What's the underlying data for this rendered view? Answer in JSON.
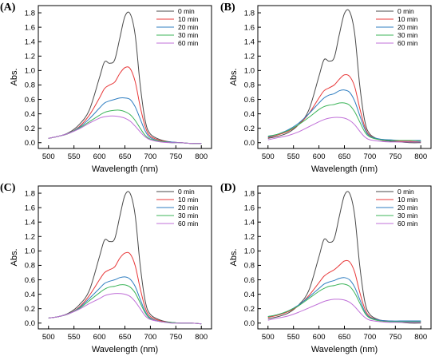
{
  "chart_data": [
    {
      "type": "line",
      "panel_label": "(A)",
      "xlabel": "Wavelength (nm)",
      "ylabel": "Abs.",
      "xlim": [
        480,
        820
      ],
      "ylim": [
        -0.08,
        1.9
      ],
      "xticks": [
        500,
        550,
        600,
        650,
        700,
        750,
        800
      ],
      "yticks": [
        0.0,
        0.2,
        0.4,
        0.6,
        0.8,
        1.0,
        1.2,
        1.4,
        1.6,
        1.8
      ],
      "legend_position": "top-right",
      "series": [
        {
          "name": "0 min",
          "color": "#4a4a4a",
          "x": [
            500,
            520,
            540,
            560,
            580,
            600,
            610,
            620,
            630,
            640,
            650,
            660,
            670,
            680,
            690,
            700,
            720,
            740,
            760,
            780,
            800
          ],
          "y": [
            0.06,
            0.09,
            0.14,
            0.25,
            0.45,
            0.9,
            1.12,
            1.1,
            1.15,
            1.45,
            1.75,
            1.79,
            1.5,
            0.8,
            0.3,
            0.12,
            0.04,
            0.01,
            0.0,
            -0.01,
            -0.01
          ]
        },
        {
          "name": "10 min",
          "color": "#e8393a",
          "x": [
            500,
            520,
            540,
            560,
            580,
            600,
            610,
            620,
            630,
            640,
            650,
            660,
            670,
            680,
            690,
            700,
            720,
            740,
            760,
            780,
            800
          ],
          "y": [
            0.06,
            0.09,
            0.13,
            0.22,
            0.38,
            0.62,
            0.75,
            0.8,
            0.84,
            0.96,
            1.04,
            1.03,
            0.85,
            0.5,
            0.22,
            0.09,
            0.03,
            0.01,
            0.0,
            -0.01,
            -0.01
          ]
        },
        {
          "name": "20 min",
          "color": "#2f7ec1",
          "x": [
            500,
            520,
            540,
            560,
            580,
            600,
            610,
            620,
            630,
            640,
            650,
            660,
            670,
            680,
            690,
            700,
            720,
            740,
            760,
            780,
            800
          ],
          "y": [
            0.06,
            0.09,
            0.13,
            0.21,
            0.33,
            0.48,
            0.55,
            0.58,
            0.6,
            0.62,
            0.62,
            0.6,
            0.5,
            0.33,
            0.16,
            0.07,
            0.02,
            0.01,
            0.0,
            -0.01,
            -0.01
          ]
        },
        {
          "name": "30 min",
          "color": "#3db55a",
          "x": [
            500,
            520,
            540,
            560,
            580,
            600,
            610,
            620,
            630,
            640,
            650,
            660,
            670,
            680,
            690,
            700,
            720,
            740,
            760,
            780,
            800
          ],
          "y": [
            0.06,
            0.09,
            0.13,
            0.2,
            0.29,
            0.38,
            0.42,
            0.44,
            0.45,
            0.45,
            0.43,
            0.39,
            0.31,
            0.2,
            0.1,
            0.05,
            0.02,
            0.0,
            0.0,
            -0.01,
            -0.01
          ]
        },
        {
          "name": "60 min",
          "color": "#c070d8",
          "x": [
            500,
            520,
            540,
            560,
            580,
            600,
            610,
            620,
            630,
            640,
            650,
            660,
            670,
            680,
            690,
            700,
            720,
            740,
            760,
            780,
            800
          ],
          "y": [
            0.06,
            0.09,
            0.13,
            0.19,
            0.27,
            0.34,
            0.36,
            0.37,
            0.37,
            0.36,
            0.34,
            0.3,
            0.23,
            0.15,
            0.08,
            0.04,
            0.01,
            0.0,
            0.0,
            -0.01,
            -0.01
          ]
        }
      ]
    },
    {
      "type": "line",
      "panel_label": "(B)",
      "xlabel": "Wavelength (nm)",
      "ylabel": "Abs.",
      "xlim": [
        480,
        820
      ],
      "ylim": [
        -0.08,
        1.9
      ],
      "xticks": [
        500,
        550,
        600,
        650,
        700,
        750,
        800
      ],
      "yticks": [
        0.0,
        0.2,
        0.4,
        0.6,
        0.8,
        1.0,
        1.2,
        1.4,
        1.6,
        1.8
      ],
      "legend_position": "top-right",
      "series": [
        {
          "name": "0 min",
          "color": "#4a4a4a",
          "x": [
            500,
            520,
            540,
            560,
            580,
            600,
            610,
            620,
            630,
            640,
            650,
            660,
            670,
            680,
            690,
            700,
            720,
            740,
            760,
            780,
            800
          ],
          "y": [
            0.06,
            0.09,
            0.14,
            0.25,
            0.45,
            0.92,
            1.15,
            1.13,
            1.18,
            1.5,
            1.79,
            1.82,
            1.52,
            0.8,
            0.3,
            0.12,
            0.04,
            0.02,
            0.01,
            0.0,
            0.0
          ]
        },
        {
          "name": "10 min",
          "color": "#e8393a",
          "x": [
            500,
            520,
            540,
            560,
            580,
            600,
            610,
            620,
            630,
            640,
            650,
            660,
            670,
            680,
            690,
            700,
            720,
            740,
            760,
            780,
            800
          ],
          "y": [
            0.07,
            0.11,
            0.16,
            0.25,
            0.4,
            0.62,
            0.72,
            0.76,
            0.8,
            0.88,
            0.94,
            0.92,
            0.78,
            0.48,
            0.22,
            0.1,
            0.04,
            0.03,
            0.02,
            0.02,
            0.01
          ]
        },
        {
          "name": "20 min",
          "color": "#2f7ec1",
          "x": [
            500,
            520,
            540,
            560,
            580,
            600,
            610,
            620,
            630,
            640,
            650,
            660,
            670,
            680,
            690,
            700,
            720,
            740,
            760,
            780,
            800
          ],
          "y": [
            0.08,
            0.12,
            0.18,
            0.27,
            0.4,
            0.55,
            0.62,
            0.66,
            0.68,
            0.72,
            0.73,
            0.7,
            0.58,
            0.38,
            0.19,
            0.09,
            0.05,
            0.04,
            0.03,
            0.03,
            0.03
          ]
        },
        {
          "name": "30 min",
          "color": "#3db55a",
          "x": [
            500,
            520,
            540,
            560,
            580,
            600,
            610,
            620,
            630,
            640,
            650,
            660,
            670,
            680,
            690,
            700,
            720,
            740,
            760,
            780,
            800
          ],
          "y": [
            0.09,
            0.12,
            0.17,
            0.25,
            0.35,
            0.46,
            0.5,
            0.52,
            0.53,
            0.55,
            0.55,
            0.52,
            0.43,
            0.29,
            0.15,
            0.08,
            0.04,
            0.03,
            0.03,
            0.03,
            0.02
          ]
        },
        {
          "name": "60 min",
          "color": "#c070d8",
          "x": [
            500,
            520,
            540,
            560,
            580,
            600,
            610,
            620,
            630,
            640,
            650,
            660,
            670,
            680,
            690,
            700,
            720,
            740,
            760,
            780,
            800
          ],
          "y": [
            0.04,
            0.07,
            0.1,
            0.15,
            0.22,
            0.29,
            0.32,
            0.34,
            0.35,
            0.35,
            0.34,
            0.31,
            0.25,
            0.16,
            0.08,
            0.04,
            0.02,
            0.01,
            0.01,
            0.01,
            0.01
          ]
        }
      ]
    },
    {
      "type": "line",
      "panel_label": "(C)",
      "xlabel": "Wavelength (nm)",
      "ylabel": "Abs.",
      "xlim": [
        480,
        820
      ],
      "ylim": [
        -0.08,
        1.9
      ],
      "xticks": [
        500,
        550,
        600,
        650,
        700,
        750,
        800
      ],
      "yticks": [
        0.0,
        0.2,
        0.4,
        0.6,
        0.8,
        1.0,
        1.2,
        1.4,
        1.6,
        1.8
      ],
      "legend_position": "top-right",
      "series": [
        {
          "name": "0 min",
          "color": "#4a4a4a",
          "x": [
            500,
            520,
            540,
            560,
            580,
            600,
            610,
            620,
            630,
            640,
            650,
            660,
            670,
            680,
            690,
            700,
            720,
            740,
            760,
            780,
            800
          ],
          "y": [
            0.07,
            0.09,
            0.14,
            0.25,
            0.45,
            0.92,
            1.15,
            1.13,
            1.17,
            1.48,
            1.77,
            1.8,
            1.5,
            0.8,
            0.3,
            0.12,
            0.04,
            0.01,
            0.0,
            0.0,
            -0.01
          ]
        },
        {
          "name": "10 min",
          "color": "#e8393a",
          "x": [
            500,
            520,
            540,
            560,
            580,
            600,
            610,
            620,
            630,
            640,
            650,
            660,
            670,
            680,
            690,
            700,
            720,
            740,
            760,
            780,
            800
          ],
          "y": [
            0.07,
            0.09,
            0.13,
            0.22,
            0.38,
            0.6,
            0.7,
            0.74,
            0.78,
            0.9,
            0.97,
            0.96,
            0.8,
            0.48,
            0.21,
            0.09,
            0.03,
            0.01,
            0.0,
            0.0,
            -0.01
          ]
        },
        {
          "name": "20 min",
          "color": "#2f7ec1",
          "x": [
            500,
            520,
            540,
            560,
            580,
            600,
            610,
            620,
            630,
            640,
            650,
            660,
            670,
            680,
            690,
            700,
            720,
            740,
            760,
            780,
            800
          ],
          "y": [
            0.07,
            0.09,
            0.13,
            0.21,
            0.34,
            0.48,
            0.55,
            0.58,
            0.6,
            0.63,
            0.64,
            0.61,
            0.51,
            0.33,
            0.16,
            0.07,
            0.02,
            0.01,
            0.0,
            0.0,
            -0.01
          ]
        },
        {
          "name": "30 min",
          "color": "#3db55a",
          "x": [
            500,
            520,
            540,
            560,
            580,
            600,
            610,
            620,
            630,
            640,
            650,
            660,
            670,
            680,
            690,
            700,
            720,
            740,
            760,
            780,
            800
          ],
          "y": [
            0.07,
            0.09,
            0.13,
            0.2,
            0.31,
            0.42,
            0.47,
            0.5,
            0.51,
            0.53,
            0.53,
            0.5,
            0.42,
            0.28,
            0.14,
            0.06,
            0.02,
            0.01,
            0.0,
            0.0,
            -0.01
          ]
        },
        {
          "name": "60 min",
          "color": "#c070d8",
          "x": [
            500,
            520,
            540,
            560,
            580,
            600,
            610,
            620,
            630,
            640,
            650,
            660,
            670,
            680,
            690,
            700,
            720,
            740,
            760,
            780,
            800
          ],
          "y": [
            0.07,
            0.09,
            0.13,
            0.19,
            0.27,
            0.34,
            0.38,
            0.4,
            0.41,
            0.41,
            0.4,
            0.37,
            0.3,
            0.2,
            0.1,
            0.05,
            0.02,
            0.0,
            0.0,
            0.0,
            -0.01
          ]
        }
      ]
    },
    {
      "type": "line",
      "panel_label": "(D)",
      "xlabel": "Wavelength (nm)",
      "ylabel": "Abs.",
      "xlim": [
        480,
        820
      ],
      "ylim": [
        -0.08,
        1.9
      ],
      "xticks": [
        500,
        550,
        600,
        650,
        700,
        750,
        800
      ],
      "yticks": [
        0.0,
        0.2,
        0.4,
        0.6,
        0.8,
        1.0,
        1.2,
        1.4,
        1.6,
        1.8
      ],
      "legend_position": "top-right",
      "series": [
        {
          "name": "0 min",
          "color": "#4a4a4a",
          "x": [
            500,
            520,
            540,
            560,
            580,
            600,
            610,
            620,
            630,
            640,
            650,
            660,
            670,
            680,
            690,
            700,
            720,
            740,
            760,
            780,
            800
          ],
          "y": [
            0.06,
            0.09,
            0.14,
            0.25,
            0.45,
            0.92,
            1.16,
            1.12,
            1.17,
            1.48,
            1.77,
            1.8,
            1.5,
            0.8,
            0.3,
            0.12,
            0.04,
            0.02,
            0.01,
            0.0,
            0.0
          ]
        },
        {
          "name": "10 min",
          "color": "#e8393a",
          "x": [
            500,
            520,
            540,
            560,
            580,
            600,
            610,
            620,
            630,
            640,
            650,
            660,
            670,
            680,
            690,
            700,
            720,
            740,
            760,
            780,
            800
          ],
          "y": [
            0.08,
            0.11,
            0.16,
            0.24,
            0.38,
            0.56,
            0.65,
            0.7,
            0.74,
            0.8,
            0.86,
            0.85,
            0.71,
            0.43,
            0.2,
            0.09,
            0.04,
            0.03,
            0.02,
            0.02,
            0.02
          ]
        },
        {
          "name": "20 min",
          "color": "#2f7ec1",
          "x": [
            500,
            520,
            540,
            560,
            580,
            600,
            610,
            620,
            630,
            640,
            650,
            660,
            670,
            680,
            690,
            700,
            720,
            740,
            760,
            780,
            800
          ],
          "y": [
            0.09,
            0.12,
            0.17,
            0.25,
            0.36,
            0.48,
            0.54,
            0.57,
            0.59,
            0.62,
            0.63,
            0.6,
            0.5,
            0.33,
            0.16,
            0.08,
            0.04,
            0.03,
            0.03,
            0.03,
            0.03
          ]
        },
        {
          "name": "30 min",
          "color": "#3db55a",
          "x": [
            500,
            520,
            540,
            560,
            580,
            600,
            610,
            620,
            630,
            640,
            650,
            660,
            670,
            680,
            690,
            700,
            720,
            740,
            760,
            780,
            800
          ],
          "y": [
            0.09,
            0.12,
            0.17,
            0.24,
            0.34,
            0.44,
            0.48,
            0.51,
            0.52,
            0.54,
            0.54,
            0.51,
            0.42,
            0.28,
            0.14,
            0.07,
            0.03,
            0.02,
            0.02,
            0.02,
            0.02
          ]
        },
        {
          "name": "60 min",
          "color": "#c070d8",
          "x": [
            500,
            520,
            540,
            560,
            580,
            600,
            610,
            620,
            630,
            640,
            650,
            660,
            670,
            680,
            690,
            700,
            720,
            740,
            760,
            780,
            800
          ],
          "y": [
            0.04,
            0.07,
            0.1,
            0.15,
            0.21,
            0.27,
            0.3,
            0.32,
            0.33,
            0.33,
            0.32,
            0.29,
            0.23,
            0.15,
            0.08,
            0.04,
            0.02,
            0.01,
            0.01,
            0.01,
            0.01
          ]
        }
      ]
    }
  ]
}
